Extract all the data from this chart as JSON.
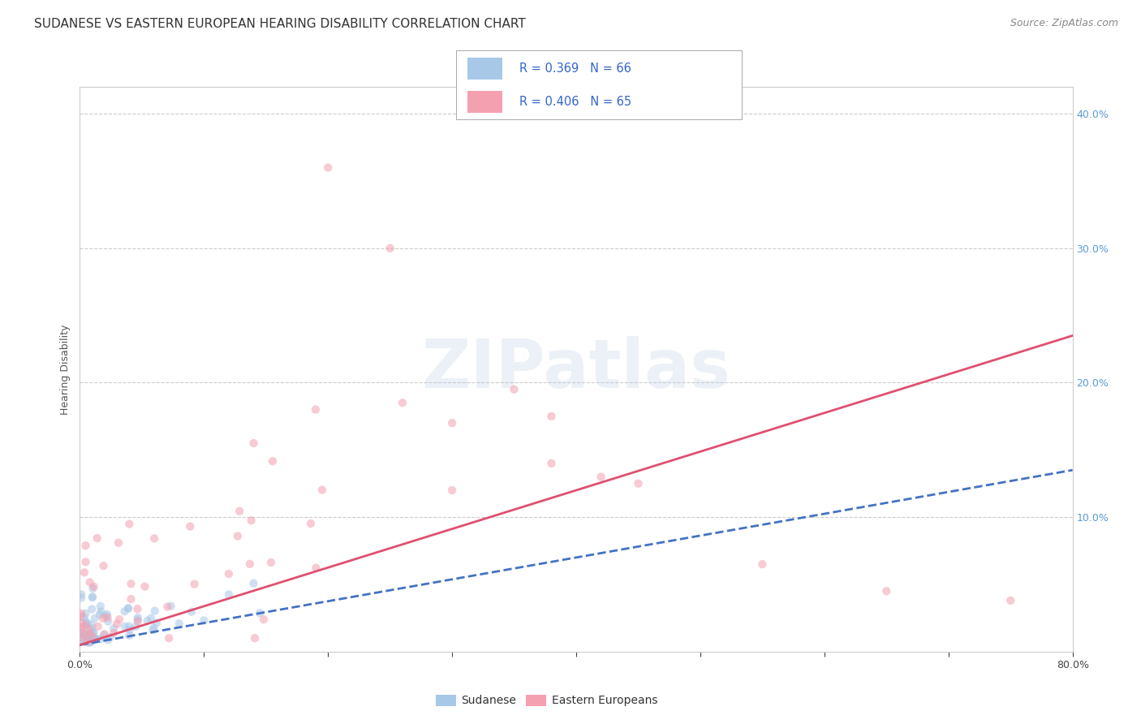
{
  "title": "SUDANESE VS EASTERN EUROPEAN HEARING DISABILITY CORRELATION CHART",
  "source": "Source: ZipAtlas.com",
  "ylabel": "Hearing Disability",
  "xlabel": "",
  "xlim": [
    0,
    0.8
  ],
  "ylim": [
    0,
    0.42
  ],
  "xticks": [
    0.0,
    0.1,
    0.2,
    0.3,
    0.4,
    0.5,
    0.6,
    0.7,
    0.8
  ],
  "yticks_right": [
    0.0,
    0.1,
    0.2,
    0.3,
    0.4
  ],
  "ytick_labels_right": [
    "",
    "10.0%",
    "20.0%",
    "30.0%",
    "40.0%"
  ],
  "watermark_text": "ZIPatlas",
  "blue_color": "#a8c8e8",
  "pink_color": "#f4a0b0",
  "blue_line_color": "#4472c4",
  "pink_line_color": "#e05070",
  "legend_blue_text": "R = 0.369   N = 66",
  "legend_pink_text": "R = 0.406   N = 65",
  "blue_line_x": [
    0.0,
    0.8
  ],
  "blue_line_y": [
    0.005,
    0.135
  ],
  "pink_line_x": [
    0.0,
    0.8
  ],
  "pink_line_y": [
    0.005,
    0.235
  ],
  "title_fontsize": 11,
  "source_fontsize": 9,
  "axis_label_fontsize": 9,
  "tick_fontsize": 9,
  "scatter_size": 55,
  "scatter_alpha": 0.55,
  "background_color": "#ffffff",
  "grid_color": "#cccccc",
  "grid_linestyle": "--"
}
